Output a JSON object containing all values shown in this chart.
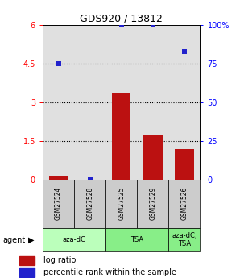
{
  "title": "GDS920 / 13812",
  "samples": [
    "GSM27524",
    "GSM27528",
    "GSM27525",
    "GSM27529",
    "GSM27526"
  ],
  "log_ratio": [
    0.1,
    0.0,
    3.35,
    1.72,
    1.18
  ],
  "percentile_rank": [
    75,
    0,
    100,
    100,
    83
  ],
  "group_spans": [
    [
      0,
      1,
      "aza-dC",
      "#bbffbb"
    ],
    [
      2,
      3,
      "TSA",
      "#88ee88"
    ],
    [
      4,
      4,
      "aza-dC,\nTSA",
      "#88ee88"
    ]
  ],
  "ylim_left": [
    0,
    6
  ],
  "ylim_right": [
    0,
    100
  ],
  "yticks_left": [
    0,
    1.5,
    3.0,
    4.5,
    6.0
  ],
  "ytick_labels_left": [
    "0",
    "1.5",
    "3",
    "4.5",
    "6"
  ],
  "yticks_right": [
    0,
    25,
    50,
    75,
    100
  ],
  "ytick_labels_right": [
    "0",
    "25",
    "50",
    "75",
    "100%"
  ],
  "bar_color": "#bb1111",
  "dot_color": "#2222cc",
  "background_color": "#ffffff",
  "plot_bg_color": "#e0e0e0",
  "sample_box_color": "#cccccc",
  "hgrid_ticks": [
    1.5,
    3.0,
    4.5
  ]
}
